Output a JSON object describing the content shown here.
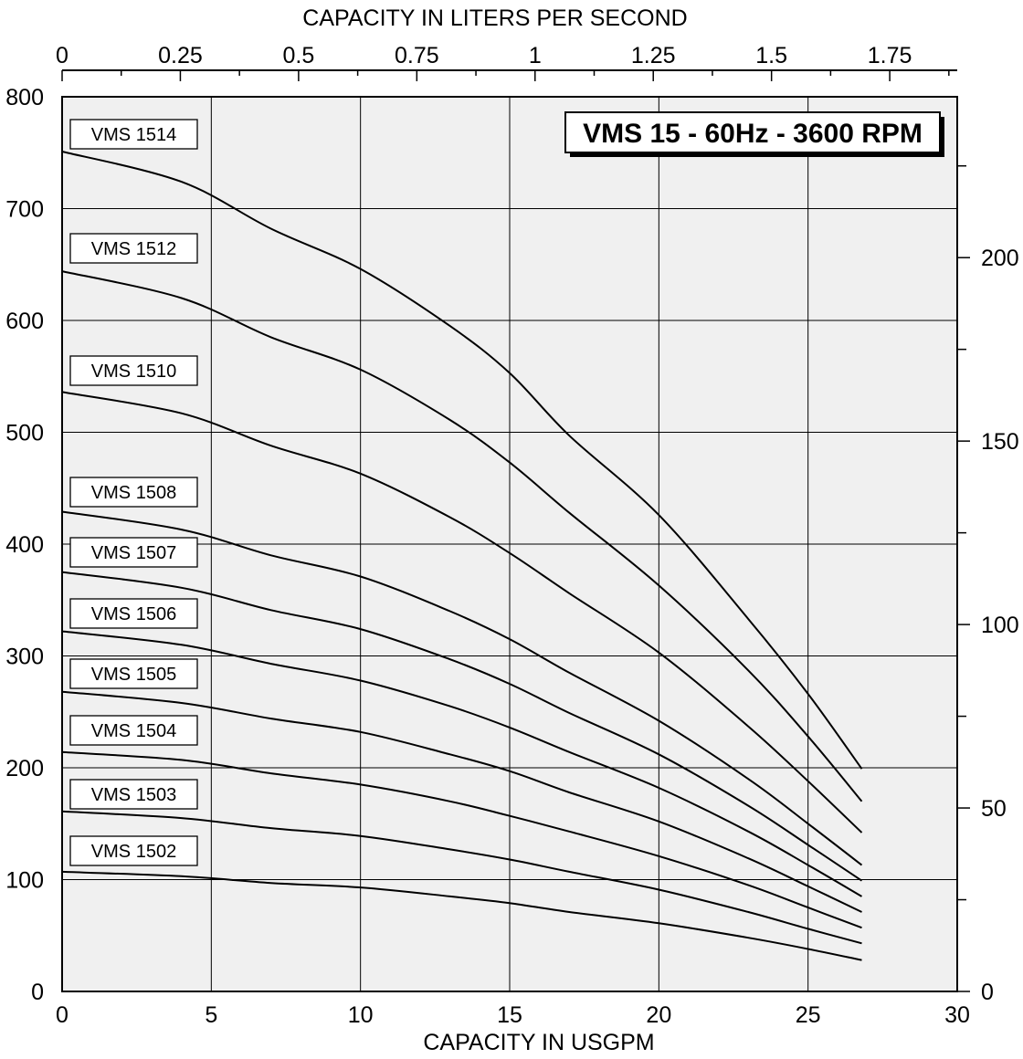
{
  "chart_data": {
    "type": "line",
    "title": "VMS 15 - 60Hz - 3600 RPM",
    "xlabel": "CAPACITY IN USGPM",
    "x2label": "CAPACITY IN LITERS PER SECOND",
    "ylabel": "",
    "xlim": [
      0,
      30
    ],
    "ylim": [
      0,
      800
    ],
    "y2lim": [
      0,
      243.84
    ],
    "x_ticks": [
      "0",
      "5",
      "10",
      "15",
      "20",
      "25",
      "30"
    ],
    "y_ticks": [
      "0",
      "100",
      "200",
      "300",
      "400",
      "500",
      "600",
      "700",
      "800"
    ],
    "x2_ticks": [
      "0",
      "0.25",
      "0.5",
      "0.75",
      "1",
      "1.25",
      "1.5",
      "1.75"
    ],
    "y2_ticks": [
      "0",
      "50",
      "100",
      "150",
      "200"
    ],
    "grid": true,
    "series": [
      {
        "name": "VMS 1514",
        "x": [
          0,
          4,
          7,
          10,
          13,
          15,
          17,
          20,
          23,
          25,
          26.8
        ],
        "y": [
          751,
          724,
          682,
          646,
          595,
          553,
          497,
          426,
          333,
          266,
          199
        ]
      },
      {
        "name": "VMS 1512",
        "x": [
          0,
          4,
          7,
          10,
          13,
          15,
          17,
          20,
          23,
          25,
          26.8
        ],
        "y": [
          644,
          620,
          585,
          556,
          511,
          473,
          428,
          363,
          287,
          228,
          170
        ]
      },
      {
        "name": "VMS 1510",
        "x": [
          0,
          4,
          7,
          10,
          13,
          15,
          17,
          20,
          23,
          25,
          26.8
        ],
        "y": [
          536,
          517,
          488,
          463,
          424,
          392,
          356,
          303,
          237,
          188,
          142
        ]
      },
      {
        "name": "VMS 1508",
        "x": [
          0,
          4,
          7,
          10,
          13,
          15,
          17,
          20,
          23,
          25,
          26.8
        ],
        "y": [
          429,
          413,
          390,
          371,
          340,
          315,
          285,
          242,
          190,
          150,
          113
        ]
      },
      {
        "name": "VMS 1507",
        "x": [
          0,
          4,
          7,
          10,
          13,
          15,
          17,
          20,
          23,
          25,
          26.8
        ],
        "y": [
          375,
          361,
          341,
          324,
          297,
          275,
          249,
          212,
          166,
          131,
          99
        ]
      },
      {
        "name": "VMS 1506",
        "x": [
          0,
          4,
          7,
          10,
          13,
          15,
          17,
          20,
          23,
          25,
          26.8
        ],
        "y": [
          322,
          310,
          293,
          278,
          255,
          236,
          214,
          182,
          143,
          113,
          85
        ]
      },
      {
        "name": "VMS 1505",
        "x": [
          0,
          4,
          7,
          10,
          13,
          15,
          17,
          20,
          23,
          25,
          26.8
        ],
        "y": [
          268,
          258,
          244,
          232,
          212,
          197,
          178,
          152,
          119,
          94,
          71
        ]
      },
      {
        "name": "VMS 1504",
        "x": [
          0,
          4,
          7,
          10,
          13,
          15,
          17,
          20,
          23,
          25,
          26.8
        ],
        "y": [
          214,
          207,
          195,
          185,
          170,
          157,
          143,
          121,
          95,
          75,
          57
        ]
      },
      {
        "name": "VMS 1503",
        "x": [
          0,
          4,
          7,
          10,
          13,
          15,
          17,
          20,
          23,
          25,
          26.8
        ],
        "y": [
          161,
          155,
          146,
          139,
          127,
          118,
          107,
          91,
          71,
          56,
          43
        ]
      },
      {
        "name": "VMS 1502",
        "x": [
          0,
          4,
          7,
          10,
          13,
          15,
          17,
          20,
          23,
          25,
          26.8
        ],
        "y": [
          107,
          103,
          97,
          93,
          85,
          79,
          71,
          61,
          48,
          38,
          28
        ]
      }
    ],
    "series_label_anchor_y": [
      147,
      272,
      406,
      539,
      605,
      672,
      738,
      800,
      870,
      932
    ]
  }
}
